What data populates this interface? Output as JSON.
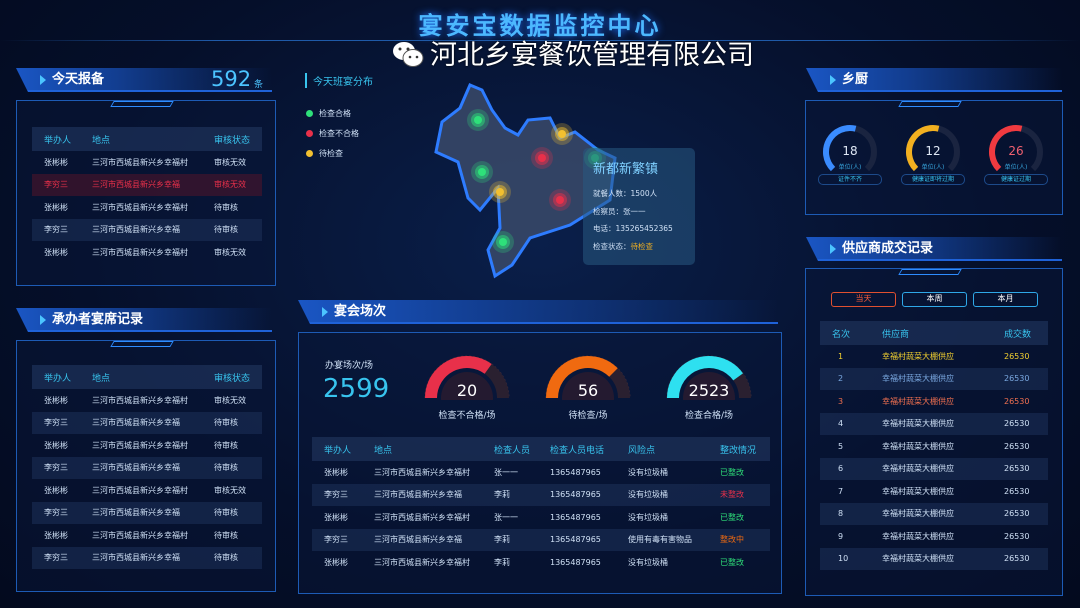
{
  "title": "宴安宝数据监控中心",
  "colors": {
    "accent": "#38c4ee",
    "pass": "#2ee07a",
    "fail": "#e8304a",
    "pending": "#f2c030"
  },
  "today_report": {
    "title": "今天报备",
    "count": "592",
    "unit": "条",
    "columns": [
      "举办人",
      "地点",
      "审核状态"
    ],
    "rows": [
      [
        "张彬彬",
        "三河市西城县新兴乡幸福村",
        "审核无效"
      ],
      [
        "李穷三",
        "三河市西城县新兴乡幸福",
        "审核无效"
      ],
      [
        "张彬彬",
        "三河市西城县新兴乡幸福村",
        "待审核"
      ],
      [
        "李穷三",
        "三河市西城县新兴乡幸福",
        "待审核"
      ],
      [
        "张彬彬",
        "三河市西城县新兴乡幸福村",
        "审核无效"
      ]
    ],
    "highlight_row": 1
  },
  "host_records": {
    "title": "承办者宴席记录",
    "columns": [
      "举办人",
      "地点",
      "审核状态"
    ],
    "rows": [
      [
        "张彬彬",
        "三河市西城县新兴乡幸福村",
        "审核无效"
      ],
      [
        "李穷三",
        "三河市西城县新兴乡幸福",
        "待审核"
      ],
      [
        "张彬彬",
        "三河市西城县新兴乡幸福村",
        "待审核"
      ],
      [
        "李穷三",
        "三河市西城县新兴乡幸福",
        "待审核"
      ],
      [
        "张彬彬",
        "三河市西城县新兴乡幸福村",
        "审核无效"
      ],
      [
        "李穷三",
        "三河市西城县新兴乡幸福",
        "待审核"
      ],
      [
        "张彬彬",
        "三河市西城县新兴乡幸福村",
        "待审核"
      ],
      [
        "李穷三",
        "三河市西城县新兴乡幸福",
        "待审核"
      ]
    ]
  },
  "map": {
    "title": "今天班宴分布",
    "legend": [
      {
        "label": "检查合格",
        "status": "pass"
      },
      {
        "label": "检查不合格",
        "status": "fail"
      },
      {
        "label": "待检查",
        "status": "pending"
      }
    ],
    "tooltip": {
      "name": "新都新繁镇",
      "diners": "就餐人数：1500人",
      "inspector": "检察员：张一一",
      "phone": "电话：135265452365",
      "status_label": "检查状态：",
      "status_value": "待检查"
    }
  },
  "banquets": {
    "title": "宴会场次",
    "total_label": "办宴场次/场",
    "total": "2599",
    "gauges": [
      {
        "value": "20",
        "label": "检查不合格/场",
        "color": "#e8304a",
        "fraction": 0.7
      },
      {
        "value": "56",
        "label": "待检查/场",
        "color": "#f06a10",
        "fraction": 0.75
      },
      {
        "value": "2523",
        "label": "检查合格/场",
        "color": "#2ee0f0",
        "fraction": 0.8
      }
    ],
    "columns": [
      "举办人",
      "地点",
      "检查人员",
      "检查人员电话",
      "风险点",
      "整改情况"
    ],
    "rows": [
      [
        "张彬彬",
        "三河市西城县新兴乡幸福村",
        "张一一",
        "1365487965",
        "没有垃圾桶",
        "已整改"
      ],
      [
        "李穷三",
        "三河市西城县新兴乡幸福",
        "李莉",
        "1365487965",
        "没有垃圾桶",
        "未整改"
      ],
      [
        "张彬彬",
        "三河市西城县新兴乡幸福村",
        "张一一",
        "1365487965",
        "没有垃圾桶",
        "已整改"
      ],
      [
        "李穷三",
        "三河市西城县新兴乡幸福",
        "李莉",
        "1365487965",
        "使用有毒有害物品",
        "整改中"
      ],
      [
        "张彬彬",
        "三河市西城县新兴乡幸福村",
        "李莉",
        "1365487965",
        "没有垃圾桶",
        "已整改"
      ]
    ]
  },
  "kitchen": {
    "title": "乡厨",
    "gauges": [
      {
        "value": "18",
        "unit": "单位(人)",
        "label": "证件不齐",
        "color": "#3a8cff",
        "fraction": 0.55
      },
      {
        "value": "12",
        "unit": "单位(人)",
        "label": "健康证即将过期",
        "color": "#f2b020",
        "fraction": 0.55
      },
      {
        "value": "26",
        "unit": "单位(人)",
        "label": "健康证过期",
        "color": "#f03a40",
        "fraction": 0.55
      }
    ]
  },
  "suppliers": {
    "title": "供应商成交记录",
    "tabs": [
      "当天",
      "本周",
      "本月"
    ],
    "active_tab": 0,
    "columns": [
      "名次",
      "供应商",
      "成交数"
    ],
    "rows": [
      [
        "1",
        "幸福村蔬菜大棚供应",
        "26530"
      ],
      [
        "2",
        "幸福村蔬菜大棚供应",
        "26530"
      ],
      [
        "3",
        "幸福村蔬菜大棚供应",
        "26530"
      ],
      [
        "4",
        "幸福村蔬菜大棚供应",
        "26530"
      ],
      [
        "5",
        "幸福村蔬菜大棚供应",
        "26530"
      ],
      [
        "6",
        "幸福村蔬菜大棚供应",
        "26530"
      ],
      [
        "7",
        "幸福村蔬菜大棚供应",
        "26530"
      ],
      [
        "8",
        "幸福村蔬菜大棚供应",
        "26530"
      ],
      [
        "9",
        "幸福村蔬菜大棚供应",
        "26530"
      ],
      [
        "10",
        "幸福村蔬菜大棚供应",
        "26530"
      ]
    ]
  },
  "watermark": "河北乡宴餐饮管理有限公司"
}
